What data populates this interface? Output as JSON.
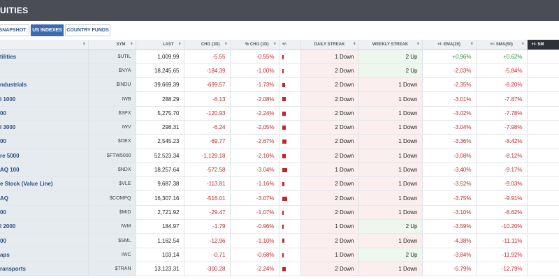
{
  "header": {
    "title": "UITIES"
  },
  "tabs": [
    {
      "label": "SNAPSHOT",
      "active": false
    },
    {
      "label": "US INDEXES",
      "active": true
    },
    {
      "label": "COUNTRY FUNDS",
      "active": false
    }
  ],
  "columns": [
    "",
    "SYM",
    "LAST",
    "CHG (1D)",
    "% CHG (1D)",
    "+/-",
    "DAILY STREAK",
    "WEEKLY STREAK",
    "+/- EMA(20)",
    "+/- SMA(50)",
    "+/- SM"
  ],
  "rows": [
    {
      "name": "tilities",
      "sym": "$UTIL",
      "last": "1,009.99",
      "chg": "-5.55",
      "pct": "-0.55%",
      "bar": 0.55,
      "daily": "1 Down",
      "weekly": "2 Up",
      "ema": "+0.96%",
      "sma": "+0.62%",
      "extra": "",
      "daily_dir": "down",
      "weekly_dir": "up",
      "ema_pos": true,
      "sma_pos": true
    },
    {
      "name": "",
      "sym": "$NYA",
      "last": "18,245.65",
      "chg": "-184.39",
      "pct": "-1.00%",
      "bar": 1.0,
      "daily": "2 Down",
      "weekly": "2 Up",
      "ema": "-2.03%",
      "sma": "-5.84%",
      "extra": "",
      "daily_dir": "down",
      "weekly_dir": "up",
      "ema_pos": false,
      "sma_pos": false
    },
    {
      "name": "ndustrials",
      "sym": "$INDU",
      "last": "39,669.39",
      "chg": "-699.57",
      "pct": "-1.73%",
      "bar": 1.73,
      "daily": "2 Down",
      "weekly": "1 Down",
      "ema": "-2.35%",
      "sma": "-6.20%",
      "extra": "",
      "daily_dir": "down",
      "weekly_dir": "down",
      "ema_pos": false,
      "sma_pos": false
    },
    {
      "name": "l 1000",
      "sym": "IWB",
      "last": "288.29",
      "chg": "-6.13",
      "pct": "-2.08%",
      "bar": 2.08,
      "daily": "2 Down",
      "weekly": "1 Down",
      "ema": "-3.01%",
      "sma": "-7.87%",
      "extra": "",
      "daily_dir": "down",
      "weekly_dir": "down",
      "ema_pos": false,
      "sma_pos": false
    },
    {
      "name": "00",
      "sym": "$SPX",
      "last": "5,275.70",
      "chg": "-120.93",
      "pct": "-2.24%",
      "bar": 2.24,
      "daily": "2 Down",
      "weekly": "1 Down",
      "ema": "-3.02%",
      "sma": "-7.78%",
      "extra": "",
      "daily_dir": "down",
      "weekly_dir": "down",
      "ema_pos": false,
      "sma_pos": false
    },
    {
      "name": "l 3000",
      "sym": "IWV",
      "last": "298.31",
      "chg": "-6.24",
      "pct": "-2.05%",
      "bar": 2.05,
      "daily": "2 Down",
      "weekly": "1 Down",
      "ema": "-3.04%",
      "sma": "-7.98%",
      "extra": "",
      "daily_dir": "down",
      "weekly_dir": "down",
      "ema_pos": false,
      "sma_pos": false
    },
    {
      "name": "00",
      "sym": "$OEX",
      "last": "2,545.23",
      "chg": "-69.77",
      "pct": "-2.67%",
      "bar": 2.67,
      "daily": "2 Down",
      "weekly": "1 Down",
      "ema": "-3.36%",
      "sma": "-8.42%",
      "extra": "",
      "daily_dir": "down",
      "weekly_dir": "down",
      "ema_pos": false,
      "sma_pos": false
    },
    {
      "name": "re 5000",
      "sym": "$FTW5000",
      "last": "52,523.34",
      "chg": "-1,129.18",
      "pct": "-2.10%",
      "bar": 2.1,
      "daily": "2 Down",
      "weekly": "1 Down",
      "ema": "-3.08%",
      "sma": "-8.12%",
      "extra": "",
      "daily_dir": "down",
      "weekly_dir": "down",
      "ema_pos": false,
      "sma_pos": false
    },
    {
      "name": "AQ 100",
      "sym": "$NDX",
      "last": "18,257.64",
      "chg": "-572.58",
      "pct": "-3.04%",
      "bar": 3.04,
      "daily": "1 Down",
      "weekly": "1 Down",
      "ema": "-3.40%",
      "sma": "-9.17%",
      "extra": "",
      "daily_dir": "down",
      "weekly_dir": "down",
      "ema_pos": false,
      "sma_pos": false
    },
    {
      "name": "e Stock (Value Line)",
      "sym": "$VLE",
      "last": "9,687.38",
      "chg": "-113.81",
      "pct": "-1.16%",
      "bar": 1.16,
      "daily": "2 Down",
      "weekly": "1 Down",
      "ema": "-3.52%",
      "sma": "-9.03%",
      "extra": "",
      "daily_dir": "down",
      "weekly_dir": "down",
      "ema_pos": false,
      "sma_pos": false
    },
    {
      "name": "AQ",
      "sym": "$COMPQ",
      "last": "16,307.16",
      "chg": "-516.01",
      "pct": "-3.07%",
      "bar": 3.07,
      "daily": "2 Down",
      "weekly": "1 Down",
      "ema": "-3.75%",
      "sma": "-9.91%",
      "extra": "",
      "daily_dir": "down",
      "weekly_dir": "down",
      "ema_pos": false,
      "sma_pos": false
    },
    {
      "name": "00",
      "sym": "$MID",
      "last": "2,721.92",
      "chg": "-29.47",
      "pct": "-1.07%",
      "bar": 1.07,
      "daily": "2 Down",
      "weekly": "1 Down",
      "ema": "-3.10%",
      "sma": "-8.62%",
      "extra": "",
      "daily_dir": "down",
      "weekly_dir": "down",
      "ema_pos": false,
      "sma_pos": false
    },
    {
      "name": "l 2000",
      "sym": "IWM",
      "last": "184.97",
      "chg": "-1.79",
      "pct": "-0.96%",
      "bar": 0.96,
      "daily": "1 Down",
      "weekly": "2 Up",
      "ema": "-3.59%",
      "sma": "-10.20%",
      "extra": "",
      "daily_dir": "down",
      "weekly_dir": "up",
      "ema_pos": false,
      "sma_pos": false
    },
    {
      "name": "00",
      "sym": "$SML",
      "last": "1,162.54",
      "chg": "-12.96",
      "pct": "-1.10%",
      "bar": 1.1,
      "daily": "2 Down",
      "weekly": "1 Down",
      "ema": "-4.38%",
      "sma": "-11.11%",
      "extra": "",
      "daily_dir": "down",
      "weekly_dir": "down",
      "ema_pos": false,
      "sma_pos": false
    },
    {
      "name": "aps",
      "sym": "IWC",
      "last": "103.14",
      "chg": "-0.71",
      "pct": "-0.68%",
      "bar": 0.68,
      "daily": "1 Down",
      "weekly": "2 Up",
      "ema": "-3.84%",
      "sma": "-11.92%",
      "extra": "",
      "daily_dir": "down",
      "weekly_dir": "up",
      "ema_pos": false,
      "sma_pos": false
    },
    {
      "name": "ransports",
      "sym": "$TRAN",
      "last": "13,123.31",
      "chg": "-300.28",
      "pct": "-2.24%",
      "bar": 2.24,
      "daily": "2 Down",
      "weekly": "1 Down",
      "ema": "-5.79%",
      "sma": "-12.79%",
      "extra": "",
      "daily_dir": "down",
      "weekly_dir": "down",
      "ema_pos": false,
      "sma_pos": false
    }
  ]
}
